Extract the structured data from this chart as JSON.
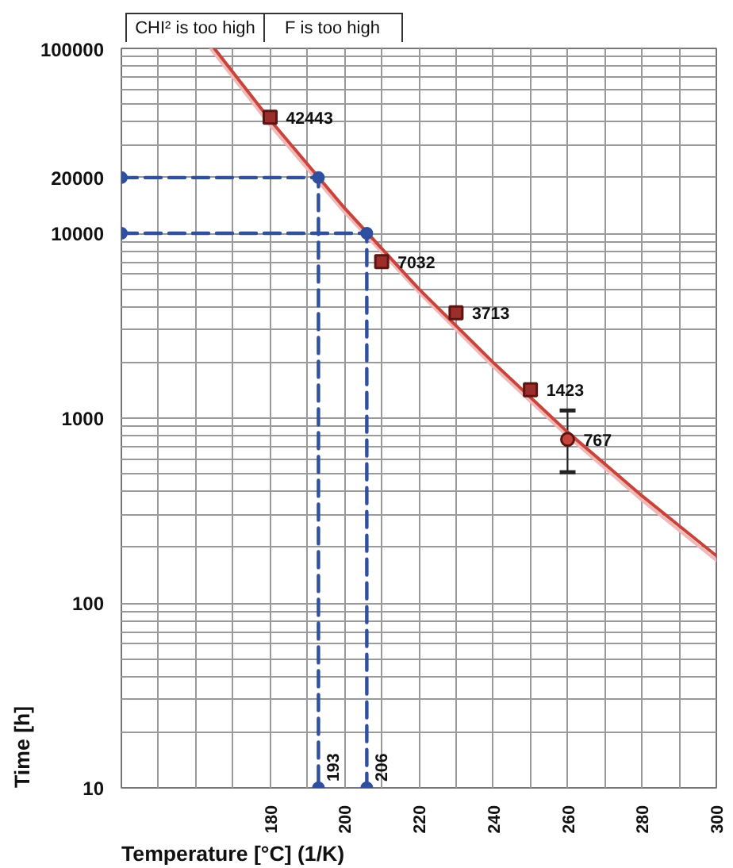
{
  "chart_data": {
    "type": "line",
    "xlabel": "Temperature [°C] (1/K)",
    "ylabel": "Time [h]",
    "annotations": [
      "CHI² is too high",
      "F is too high",
      {
        "text": "193",
        "x": 193,
        "y": 10
      },
      {
        "text": "206",
        "x": 206,
        "y": 10
      }
    ],
    "xlim": [
      140,
      300
    ],
    "xticks": [
      {
        "value": 140,
        "label": null
      },
      {
        "value": 150,
        "label": null
      },
      {
        "value": 160,
        "label": null
      },
      {
        "value": 170,
        "label": null
      },
      180,
      {
        "value": 190,
        "label": null
      },
      200,
      {
        "value": 210,
        "label": null
      },
      220,
      {
        "value": 230,
        "label": null
      },
      240,
      {
        "value": 250,
        "label": null
      },
      260,
      {
        "value": 270,
        "label": null
      },
      280,
      {
        "value": 290,
        "label": null
      },
      300
    ],
    "ylim": [
      10,
      100000
    ],
    "yticks": [
      10,
      {
        "value": 20,
        "label": null
      },
      {
        "value": 30,
        "label": null
      },
      {
        "value": 40,
        "label": null
      },
      {
        "value": 50,
        "label": null
      },
      {
        "value": 60,
        "label": null
      },
      {
        "value": 70,
        "label": null
      },
      {
        "value": 80,
        "label": null
      },
      {
        "value": 90,
        "label": null
      },
      100,
      {
        "value": 200,
        "label": null
      },
      {
        "value": 300,
        "label": null
      },
      {
        "value": 400,
        "label": null
      },
      {
        "value": 500,
        "label": null
      },
      {
        "value": 600,
        "label": null
      },
      {
        "value": 700,
        "label": null
      },
      {
        "value": 800,
        "label": null
      },
      {
        "value": 900,
        "label": null
      },
      1000,
      {
        "value": 2000,
        "label": null
      },
      {
        "value": 3000,
        "label": null
      },
      {
        "value": 4000,
        "label": null
      },
      {
        "value": 5000,
        "label": null
      },
      {
        "value": 6000,
        "label": null
      },
      {
        "value": 7000,
        "label": null
      },
      {
        "value": 8000,
        "label": null
      },
      {
        "value": 9000,
        "label": null
      },
      10000,
      20000,
      {
        "value": 30000,
        "label": null
      },
      {
        "value": 40000,
        "label": null
      },
      {
        "value": 50000,
        "label": null
      },
      {
        "value": 60000,
        "label": null
      },
      {
        "value": 70000,
        "label": null
      },
      {
        "value": 80000,
        "label": null
      },
      {
        "value": 90000,
        "label": null
      },
      100000
    ],
    "log": "y",
    "grid": true,
    "series": [
      {
        "color": "#f2b8b8",
        "marker": "none",
        "x": [
          164,
          180,
          200,
          220,
          240,
          260,
          280,
          300
        ],
        "values": [
          100000,
          38500,
          13000,
          4800,
          1900,
          800,
          360,
          170
        ]
      },
      {
        "color": "#c8433a",
        "marker": "none",
        "x": [
          165,
          180,
          200,
          220,
          240,
          260,
          280,
          300
        ],
        "values": [
          100000,
          41000,
          13700,
          5000,
          2000,
          840,
          380,
          180
        ]
      },
      {
        "color": "#2f4f9f",
        "marker": "circle",
        "line_style": "dashed",
        "x": [
          140,
          193,
          193
        ],
        "values": [
          20000,
          20000,
          10
        ]
      },
      {
        "color": "#2f4f9f",
        "marker": "circle",
        "line_style": "dashed",
        "x": [
          140,
          206,
          206
        ],
        "values": [
          10000,
          10000,
          10
        ]
      },
      {
        "type": "scatter",
        "color": "#9b2d2a",
        "marker": "square",
        "x": [
          180,
          210,
          230,
          250
        ],
        "values": [
          42443,
          7032,
          3713,
          1423
        ],
        "value_labels": [
          "42443",
          "7032",
          "3713",
          "1423"
        ]
      },
      {
        "type": "scatter",
        "color": "#c8433a",
        "marker": "circle",
        "x": [
          260
        ],
        "values": [
          767
        ],
        "value_labels": [
          "767"
        ],
        "errors": [
          [
            510,
            1100
          ]
        ]
      }
    ]
  }
}
